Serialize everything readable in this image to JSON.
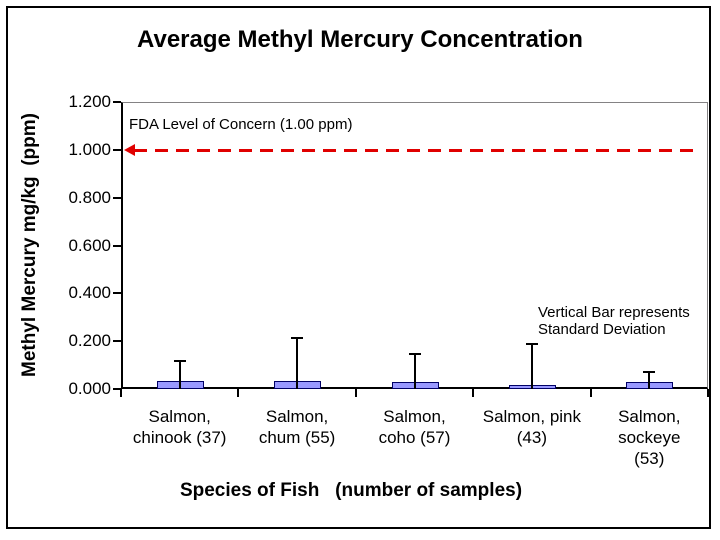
{
  "chart_data": {
    "type": "bar",
    "title": "Average Methyl Mercury Concentration",
    "xlabel": "Species of Fish   (number of samples)",
    "ylabel": "Methyl Mercury mg/kg  (ppm)",
    "categories": [
      "Salmon, chinook (37)",
      "Salmon, chum (55)",
      "Salmon, coho (57)",
      "Salmon, pink (43)",
      "Salmon, sockeye (53)"
    ],
    "category_label_lines": [
      [
        "Salmon,",
        "chinook (37)"
      ],
      [
        "Salmon,",
        "chum (55)"
      ],
      [
        "Salmon,",
        "coho (57)"
      ],
      [
        "Salmon, pink",
        "(43)"
      ],
      [
        "Salmon,",
        "sockeye",
        "(53)"
      ]
    ],
    "sample_counts": [
      37,
      55,
      57,
      43,
      53
    ],
    "values": [
      0.035,
      0.035,
      0.03,
      0.015,
      0.03
    ],
    "std_dev": [
      0.08,
      0.18,
      0.115,
      0.175,
      0.04
    ],
    "y_ticks": [
      "0.000",
      "0.200",
      "0.400",
      "0.600",
      "0.800",
      "1.000",
      "1.200"
    ],
    "ylim": [
      0,
      1.2
    ],
    "grid": false,
    "legend": null,
    "reference_line": {
      "value": 1.0,
      "label": "FDA Level of Concern (1.00 ppm)",
      "style": "dashed",
      "arrow": "left"
    },
    "annotation": [
      "Vertical Bar represents",
      "Standard Deviation"
    ],
    "colors": {
      "bar_fill": "#9999FF",
      "bar_border": "#000066",
      "error_bar": "#000000",
      "reference_line": "#E00000",
      "plot_border_gray": "#848284",
      "axis": "#000000",
      "text": "#000000",
      "background": "#FFFFFF"
    }
  }
}
